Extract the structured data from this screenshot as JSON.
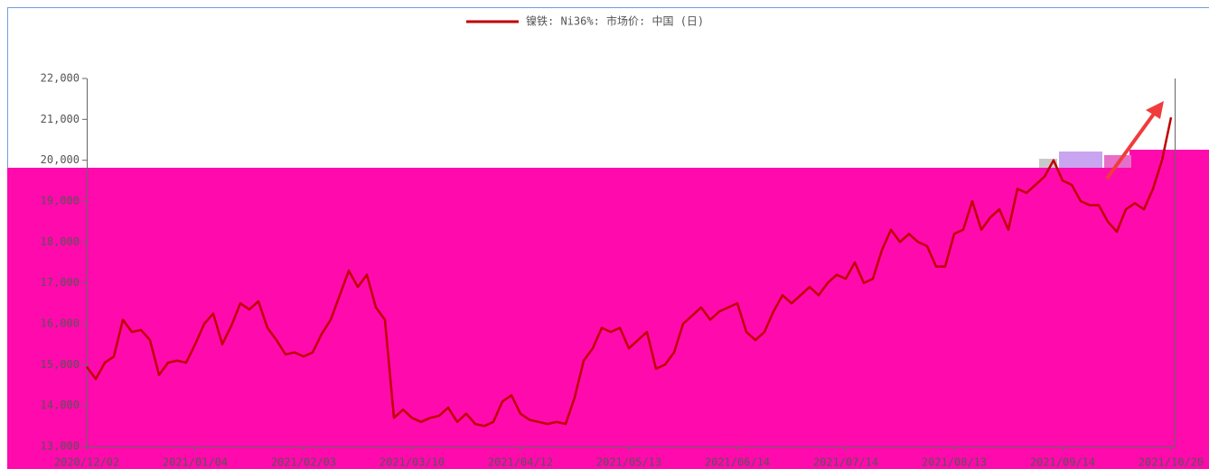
{
  "chart_data": {
    "type": "line",
    "categories": [
      "2020/12/02",
      null,
      null,
      null,
      null,
      null,
      null,
      null,
      null,
      null,
      null,
      null,
      "2021/01/04",
      null,
      null,
      null,
      null,
      null,
      null,
      null,
      null,
      null,
      null,
      null,
      "2021/02/03",
      null,
      null,
      null,
      null,
      null,
      null,
      null,
      null,
      null,
      null,
      null,
      "2021/03/10",
      null,
      null,
      null,
      null,
      null,
      null,
      null,
      null,
      null,
      null,
      null,
      "2021/04/12",
      null,
      null,
      null,
      null,
      null,
      null,
      null,
      null,
      null,
      null,
      null,
      "2021/05/13",
      null,
      null,
      null,
      null,
      null,
      null,
      null,
      null,
      null,
      null,
      null,
      "2021/06/14",
      null,
      null,
      null,
      null,
      null,
      null,
      null,
      null,
      null,
      null,
      null,
      "2021/07/14",
      null,
      null,
      null,
      null,
      null,
      null,
      null,
      null,
      null,
      null,
      null,
      "2021/08/13",
      null,
      null,
      null,
      null,
      null,
      null,
      null,
      null,
      null,
      null,
      null,
      "2021/09/14",
      null,
      null,
      null,
      null,
      null,
      null,
      null,
      null,
      null,
      null,
      null,
      "2021/10/20"
    ],
    "series": [
      {
        "name": "镍铁: Ni36%: 市场价: 中国 (日)",
        "color": "#c00000",
        "values": [
          14950,
          14650,
          15050,
          15200,
          16100,
          15800,
          15850,
          15600,
          14750,
          15050,
          15100,
          15050,
          15500,
          16000,
          16250,
          15500,
          15950,
          16500,
          16350,
          16550,
          15900,
          15600,
          15250,
          15300,
          15200,
          15300,
          15750,
          16100,
          16700,
          17300,
          16900,
          17200,
          16400,
          16100,
          13700,
          13900,
          13700,
          13600,
          13700,
          13750,
          13950,
          13600,
          13800,
          13550,
          13500,
          13600,
          14100,
          14250,
          13800,
          13650,
          13600,
          13550,
          13600,
          13550,
          14200,
          15100,
          15400,
          15900,
          15800,
          15900,
          15400,
          15600,
          15800,
          14900,
          15000,
          15300,
          16000,
          16200,
          16400,
          16100,
          16300,
          16400,
          16500,
          15800,
          15600,
          15800,
          16300,
          16700,
          16500,
          16700,
          16900,
          16700,
          17000,
          17200,
          17100,
          17500,
          17000,
          17100,
          17800,
          18300,
          18000,
          18200,
          18000,
          17900,
          17400,
          17400,
          18200,
          18300,
          19000,
          18300,
          18600,
          18800,
          18300,
          19300,
          19200,
          19400,
          19600,
          20000,
          19500,
          19400,
          19000,
          18900,
          18900,
          18500,
          18250,
          18800,
          18950,
          18800,
          19300,
          20000,
          21050
        ]
      }
    ],
    "ylim": [
      13000,
      22000
    ],
    "yticks": [
      {
        "value": 13000,
        "label": "13,000"
      },
      {
        "value": 14000,
        "label": "14,000"
      },
      {
        "value": 15000,
        "label": "15,000"
      },
      {
        "value": 16000,
        "label": "16,000"
      },
      {
        "value": 17000,
        "label": "17,000"
      },
      {
        "value": 18000,
        "label": "18,000"
      },
      {
        "value": 19000,
        "label": "19,000"
      },
      {
        "value": 20000,
        "label": "20,000"
      },
      {
        "value": 21000,
        "label": "21,000"
      },
      {
        "value": 22000,
        "label": "22,000"
      }
    ],
    "legend": "top"
  }
}
